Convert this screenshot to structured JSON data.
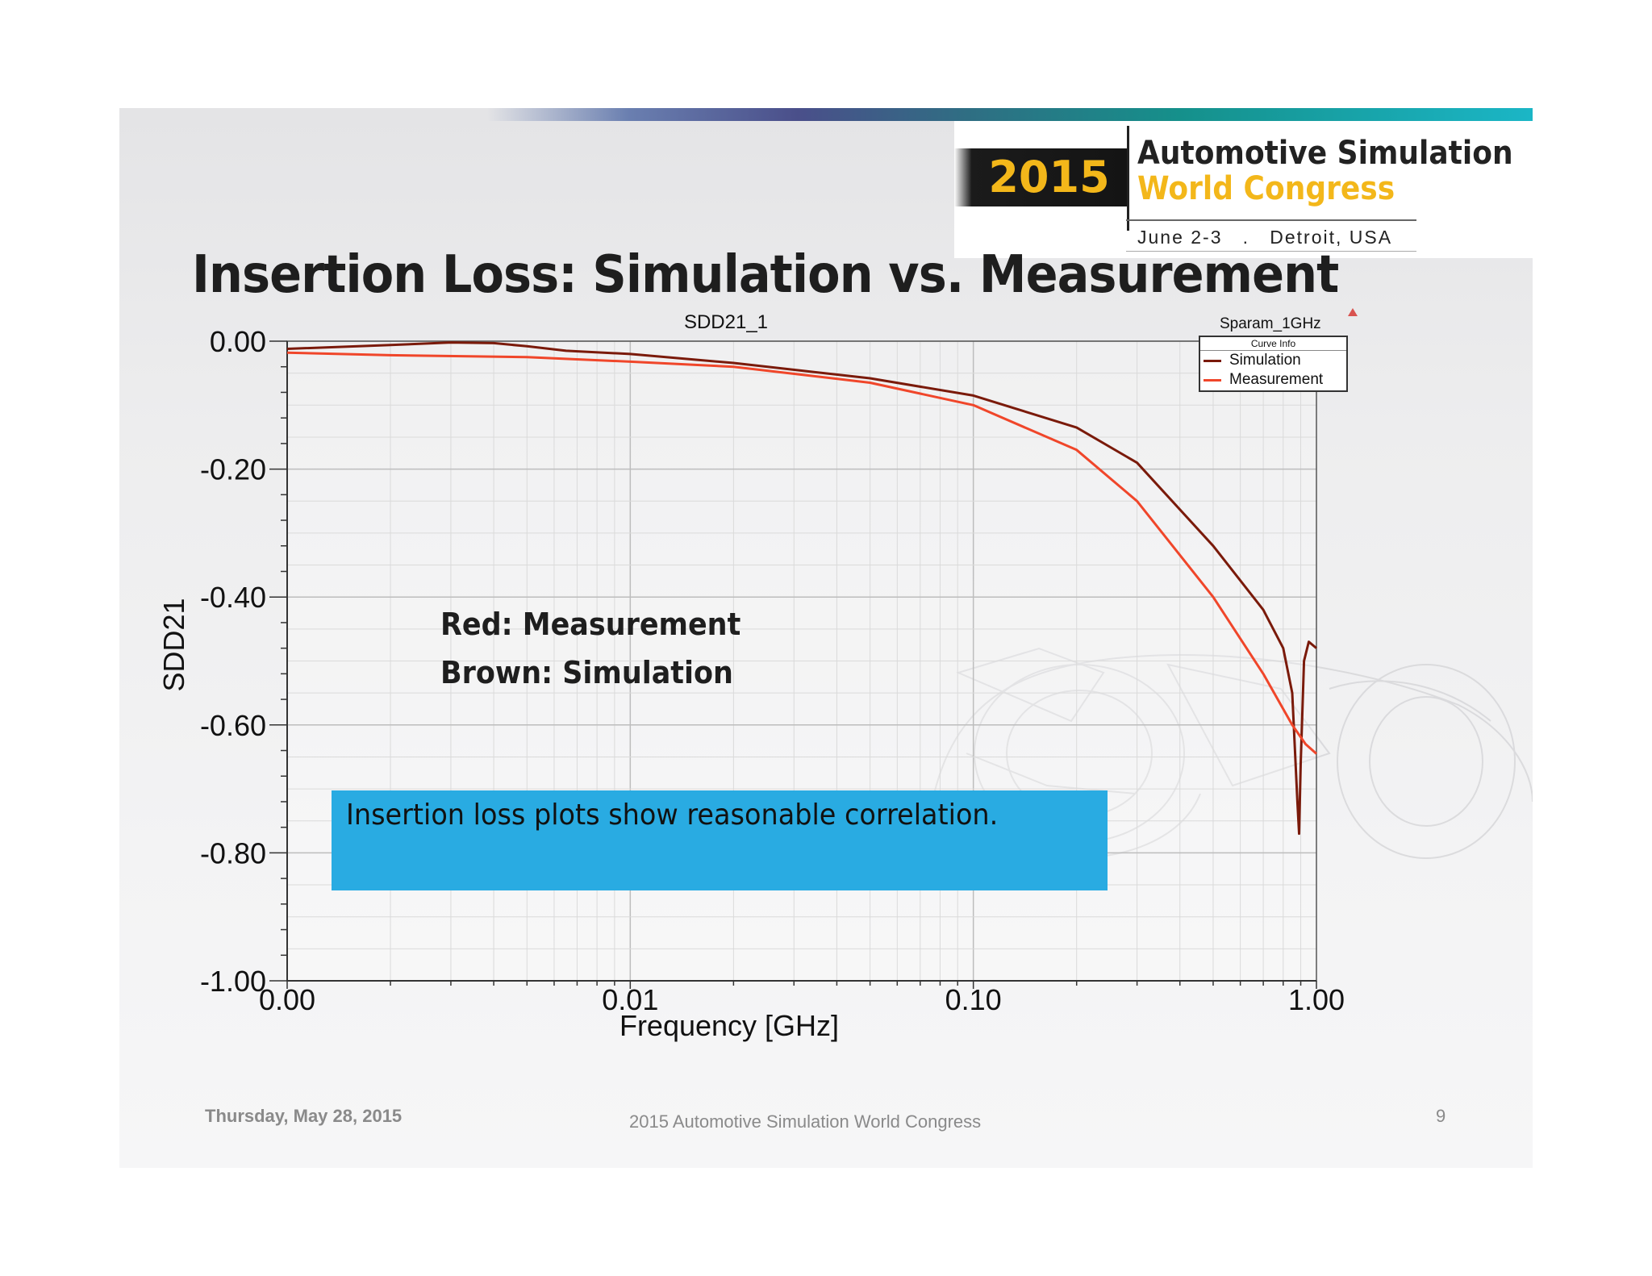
{
  "slide": {
    "title": "Insertion Loss: Simulation vs. Measurement",
    "footer_date": "Thursday, May 28, 2015",
    "footer_center": "2015 Automotive Simulation World Congress",
    "page_number": "9"
  },
  "header": {
    "year": "2015",
    "conference_line1": "Automotive Simulation",
    "conference_line2": "World Congress",
    "dates_location": "June 2-3   .   Detroit, USA"
  },
  "annotations": {
    "line1": "Red: Measurement",
    "line2": "Brown: Simulation",
    "callout": "Insertion loss plots show reasonable correlation."
  },
  "chart_data": {
    "type": "line",
    "title": "SDD21_1",
    "corner_label": "Sparam_1GHz",
    "xlabel": "Frequency [GHz]",
    "ylabel": "SDD21",
    "x_scale": "log",
    "x_tick_labels": [
      "0.00",
      "0.01",
      "0.10",
      "1.00"
    ],
    "y_tick_labels": [
      "0.00",
      "-0.20",
      "-0.40",
      "-0.60",
      "-0.80",
      "-1.00"
    ],
    "ylim": [
      -1.0,
      0.0
    ],
    "legend_title": "Curve Info",
    "legend_position": "top-right",
    "grid": true,
    "series": [
      {
        "name": "Simulation",
        "color": "#7a1a0a",
        "points": [
          [
            0.001,
            -0.012
          ],
          [
            0.002,
            -0.006
          ],
          [
            0.003,
            -0.002
          ],
          [
            0.004,
            -0.003
          ],
          [
            0.005,
            -0.008
          ],
          [
            0.0065,
            -0.015
          ],
          [
            0.01,
            -0.02
          ],
          [
            0.02,
            -0.034
          ],
          [
            0.05,
            -0.058
          ],
          [
            0.1,
            -0.085
          ],
          [
            0.2,
            -0.135
          ],
          [
            0.3,
            -0.19
          ],
          [
            0.5,
            -0.32
          ],
          [
            0.7,
            -0.42
          ],
          [
            0.8,
            -0.48
          ],
          [
            0.85,
            -0.55
          ],
          [
            0.88,
            -0.72
          ],
          [
            0.89,
            -0.77
          ],
          [
            0.9,
            -0.66
          ],
          [
            0.92,
            -0.5
          ],
          [
            0.95,
            -0.47
          ],
          [
            1.0,
            -0.48
          ]
        ]
      },
      {
        "name": "Measurement",
        "color": "#f0462a",
        "points": [
          [
            0.001,
            -0.018
          ],
          [
            0.002,
            -0.022
          ],
          [
            0.005,
            -0.025
          ],
          [
            0.01,
            -0.032
          ],
          [
            0.02,
            -0.04
          ],
          [
            0.05,
            -0.065
          ],
          [
            0.1,
            -0.1
          ],
          [
            0.2,
            -0.17
          ],
          [
            0.3,
            -0.25
          ],
          [
            0.5,
            -0.4
          ],
          [
            0.7,
            -0.52
          ],
          [
            0.85,
            -0.6
          ],
          [
            0.93,
            -0.63
          ],
          [
            1.0,
            -0.645
          ]
        ]
      }
    ]
  }
}
